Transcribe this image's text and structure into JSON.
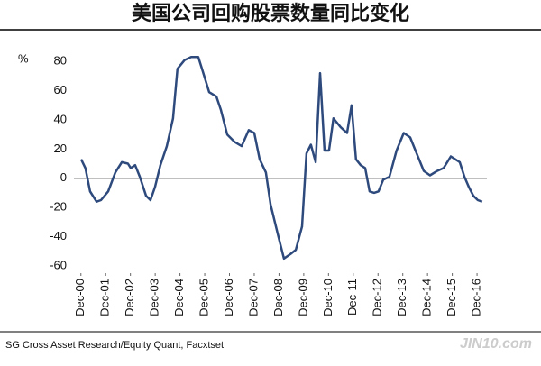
{
  "chart_data": {
    "type": "line",
    "title": "美国公司回购股票数量同比变化",
    "y_label": "%",
    "source": "SG Cross Asset Research/Equity Quant, Facxtset",
    "watermark": "JIN10.com",
    "xlim": [
      2000.2,
      2017.5
    ],
    "xticks": [
      {
        "value": 2000.92,
        "label": "Dec-00"
      },
      {
        "value": 2001.92,
        "label": "Dec-01"
      },
      {
        "value": 2002.92,
        "label": "Dec-02"
      },
      {
        "value": 2003.92,
        "label": "Dec-03"
      },
      {
        "value": 2004.92,
        "label": "Dec-04"
      },
      {
        "value": 2005.92,
        "label": "Dec-05"
      },
      {
        "value": 2006.92,
        "label": "Dec-06"
      },
      {
        "value": 2007.92,
        "label": "Dec-07"
      },
      {
        "value": 2008.92,
        "label": "Dec-08"
      },
      {
        "value": 2009.92,
        "label": "Dec-09"
      },
      {
        "value": 2010.92,
        "label": "Dec-10"
      },
      {
        "value": 2011.92,
        "label": "Dec-11"
      },
      {
        "value": 2012.92,
        "label": "Dec-12"
      },
      {
        "value": 2013.92,
        "label": "Dec-13"
      },
      {
        "value": 2014.92,
        "label": "Dec-14"
      },
      {
        "value": 2015.92,
        "label": "Dec-15"
      },
      {
        "value": 2016.92,
        "label": "Dec-16"
      }
    ],
    "ylim": [
      -65,
      90
    ],
    "yticks": [
      80,
      60,
      40,
      20,
      0,
      -20,
      -40,
      -60
    ],
    "x": [
      2000.93,
      2001.1,
      2001.29,
      2001.55,
      2001.73,
      2002.02,
      2002.31,
      2002.57,
      2002.82,
      2002.93,
      2003.11,
      2003.3,
      2003.55,
      2003.73,
      2003.91,
      2004.13,
      2004.39,
      2004.64,
      2004.82,
      2005.11,
      2005.37,
      2005.66,
      2005.81,
      2006.1,
      2006.39,
      2006.57,
      2006.83,
      2007.12,
      2007.41,
      2007.7,
      2007.92,
      2008.14,
      2008.39,
      2008.58,
      2008.87,
      2009.12,
      2009.38,
      2009.6,
      2009.85,
      2010.03,
      2010.21,
      2010.4,
      2010.58,
      2010.76,
      2010.94,
      2011.12,
      2011.41,
      2011.67,
      2011.85,
      2012.03,
      2012.22,
      2012.4,
      2012.58,
      2012.76,
      2012.94,
      2013.13,
      2013.38,
      2013.67,
      2013.96,
      2014.22,
      2014.48,
      2014.77,
      2015.02,
      2015.31,
      2015.57,
      2015.86,
      2016.04,
      2016.22,
      2016.41,
      2016.59,
      2016.77,
      2016.95,
      2017.13
    ],
    "series": [
      {
        "color": "#2e4a7d",
        "values": [
          13,
          7,
          -9,
          -16,
          -15,
          -9,
          4,
          11,
          10,
          7,
          9,
          1,
          -12,
          -15,
          -6,
          9,
          22,
          41,
          75,
          81,
          83,
          83,
          75,
          59,
          56,
          47,
          30,
          25,
          22,
          33,
          31,
          13,
          4,
          -18,
          -38,
          -55,
          -52,
          -49,
          -33,
          17,
          23,
          11,
          72,
          19,
          19,
          41,
          35,
          31,
          50,
          13,
          9,
          7,
          -9,
          -10,
          -9,
          -1,
          1,
          19,
          31,
          28,
          17,
          5,
          2,
          5,
          7,
          15,
          13,
          11,
          1,
          -6,
          -12,
          -15,
          -16
        ]
      }
    ]
  }
}
